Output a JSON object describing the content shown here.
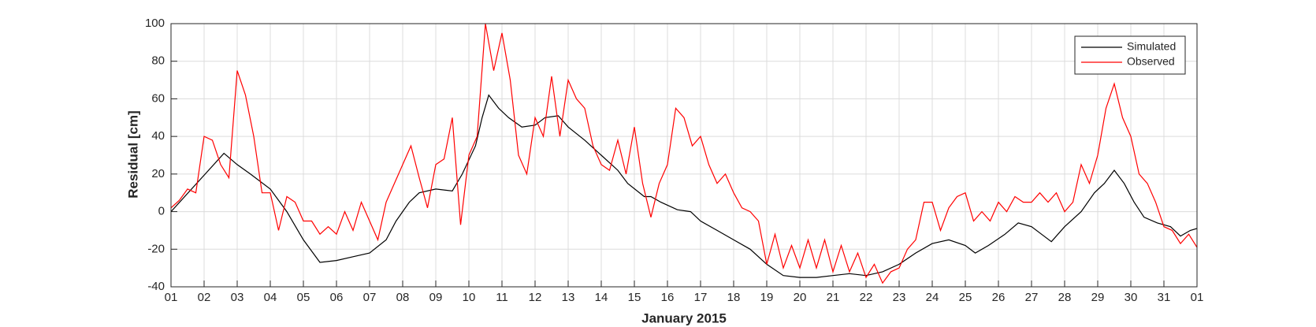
{
  "chart_data": {
    "type": "line",
    "xlabel": "January 2015",
    "ylabel": "Residual [cm]",
    "xlim": [
      1,
      32
    ],
    "ylim": [
      -40,
      100
    ],
    "xticks": [
      {
        "value": 1,
        "label": "01"
      },
      {
        "value": 2,
        "label": "02"
      },
      {
        "value": 3,
        "label": "03"
      },
      {
        "value": 4,
        "label": "04"
      },
      {
        "value": 5,
        "label": "05"
      },
      {
        "value": 6,
        "label": "06"
      },
      {
        "value": 7,
        "label": "07"
      },
      {
        "value": 8,
        "label": "08"
      },
      {
        "value": 9,
        "label": "09"
      },
      {
        "value": 10,
        "label": "10"
      },
      {
        "value": 11,
        "label": "11"
      },
      {
        "value": 12,
        "label": "12"
      },
      {
        "value": 13,
        "label": "13"
      },
      {
        "value": 14,
        "label": "14"
      },
      {
        "value": 15,
        "label": "15"
      },
      {
        "value": 16,
        "label": "16"
      },
      {
        "value": 17,
        "label": "17"
      },
      {
        "value": 18,
        "label": "18"
      },
      {
        "value": 19,
        "label": "19"
      },
      {
        "value": 20,
        "label": "20"
      },
      {
        "value": 21,
        "label": "21"
      },
      {
        "value": 22,
        "label": "22"
      },
      {
        "value": 23,
        "label": "23"
      },
      {
        "value": 24,
        "label": "24"
      },
      {
        "value": 25,
        "label": "25"
      },
      {
        "value": 26,
        "label": "26"
      },
      {
        "value": 27,
        "label": "27"
      },
      {
        "value": 28,
        "label": "28"
      },
      {
        "value": 29,
        "label": "29"
      },
      {
        "value": 30,
        "label": "30"
      },
      {
        "value": 31,
        "label": "31"
      },
      {
        "value": 32,
        "label": "01"
      }
    ],
    "yticks": [
      -40,
      -20,
      0,
      20,
      40,
      60,
      80,
      100
    ],
    "grid": true,
    "legend": "northeast",
    "series": [
      {
        "name": "Simulated",
        "color": "#000000",
        "x": [
          1,
          2.6,
          3,
          3.4,
          4,
          4.5,
          5,
          5.5,
          6,
          6.5,
          7,
          7.5,
          7.8,
          8.2,
          8.5,
          9,
          9.5,
          9.8,
          10.2,
          10.4,
          10.6,
          10.9,
          11.2,
          11.6,
          12,
          12.3,
          12.7,
          13,
          13.5,
          14,
          14.5,
          14.8,
          15.3,
          15.5,
          15.8,
          16.3,
          16.7,
          17,
          17.5,
          18,
          18.5,
          19,
          19.5,
          20,
          20.5,
          21,
          21.5,
          22,
          22.5,
          23,
          23.5,
          24,
          24.5,
          25,
          25.3,
          25.7,
          26.2,
          26.6,
          27,
          27.3,
          27.6,
          28,
          28.5,
          28.9,
          29.2,
          29.5,
          29.8,
          30.1,
          30.4,
          30.8,
          31.2,
          31.5,
          31.8,
          32
        ],
        "values": [
          0,
          31,
          25,
          20,
          12,
          0,
          -15,
          -27,
          -26,
          -24,
          -22,
          -15,
          -5,
          5,
          10,
          12,
          11,
          20,
          35,
          50,
          62,
          55,
          50,
          45,
          46,
          50,
          51,
          45,
          38,
          30,
          22,
          15,
          8,
          8,
          5,
          1,
          0,
          -5,
          -10,
          -15,
          -20,
          -28,
          -34,
          -35,
          -35,
          -34,
          -33,
          -34,
          -32,
          -28,
          -22,
          -17,
          -15,
          -18,
          -22,
          -18,
          -12,
          -6,
          -8,
          -12,
          -16,
          -8,
          0,
          10,
          15,
          22,
          15,
          5,
          -3,
          -6,
          -8,
          -13,
          -10,
          -9
        ]
      },
      {
        "name": "Observed",
        "color": "#ff0000",
        "x": [
          1,
          1.25,
          1.5,
          1.75,
          2,
          2.25,
          2.5,
          2.75,
          3,
          3.25,
          3.5,
          3.75,
          4,
          4.25,
          4.5,
          4.75,
          5,
          5.25,
          5.5,
          5.75,
          6,
          6.25,
          6.5,
          6.75,
          7,
          7.25,
          7.5,
          7.75,
          8,
          8.25,
          8.5,
          8.75,
          9,
          9.25,
          9.5,
          9.75,
          10,
          10.25,
          10.5,
          10.75,
          11,
          11.25,
          11.5,
          11.75,
          12,
          12.25,
          12.5,
          12.75,
          13,
          13.25,
          13.5,
          13.75,
          14,
          14.25,
          14.5,
          14.75,
          15,
          15.25,
          15.5,
          15.75,
          16,
          16.25,
          16.5,
          16.75,
          17,
          17.25,
          17.5,
          17.75,
          18,
          18.25,
          18.5,
          18.75,
          19,
          19.25,
          19.5,
          19.75,
          20,
          20.25,
          20.5,
          20.75,
          21,
          21.25,
          21.5,
          21.75,
          22,
          22.25,
          22.5,
          22.75,
          23,
          23.25,
          23.5,
          23.75,
          24,
          24.25,
          24.5,
          24.75,
          25,
          25.25,
          25.5,
          25.75,
          26,
          26.25,
          26.5,
          26.75,
          27,
          27.25,
          27.5,
          27.75,
          28,
          28.25,
          28.5,
          28.75,
          29,
          29.25,
          29.5,
          29.75,
          30,
          30.25,
          30.5,
          30.75,
          31,
          31.25,
          31.5,
          31.75,
          32
        ],
        "values": [
          2,
          6,
          12,
          10,
          40,
          38,
          25,
          18,
          75,
          62,
          40,
          10,
          10,
          -10,
          8,
          5,
          -5,
          -5,
          -12,
          -8,
          -12,
          0,
          -10,
          5,
          -5,
          -15,
          5,
          15,
          25,
          35,
          18,
          2,
          25,
          28,
          50,
          -7,
          30,
          40,
          100,
          75,
          95,
          70,
          30,
          20,
          50,
          40,
          72,
          40,
          70,
          60,
          55,
          35,
          25,
          22,
          38,
          20,
          45,
          15,
          -3,
          15,
          25,
          55,
          50,
          35,
          40,
          25,
          15,
          20,
          10,
          2,
          0,
          -5,
          -28,
          -12,
          -30,
          -18,
          -30,
          -15,
          -30,
          -15,
          -32,
          -18,
          -32,
          -22,
          -35,
          -28,
          -38,
          -32,
          -30,
          -20,
          -15,
          5,
          5,
          -10,
          2,
          8,
          10,
          -5,
          0,
          -5,
          5,
          0,
          8,
          5,
          5,
          10,
          5,
          10,
          0,
          5,
          25,
          15,
          30,
          55,
          68,
          50,
          40,
          20,
          15,
          5,
          -8,
          -10,
          -17,
          -12,
          -19
        ]
      }
    ]
  }
}
